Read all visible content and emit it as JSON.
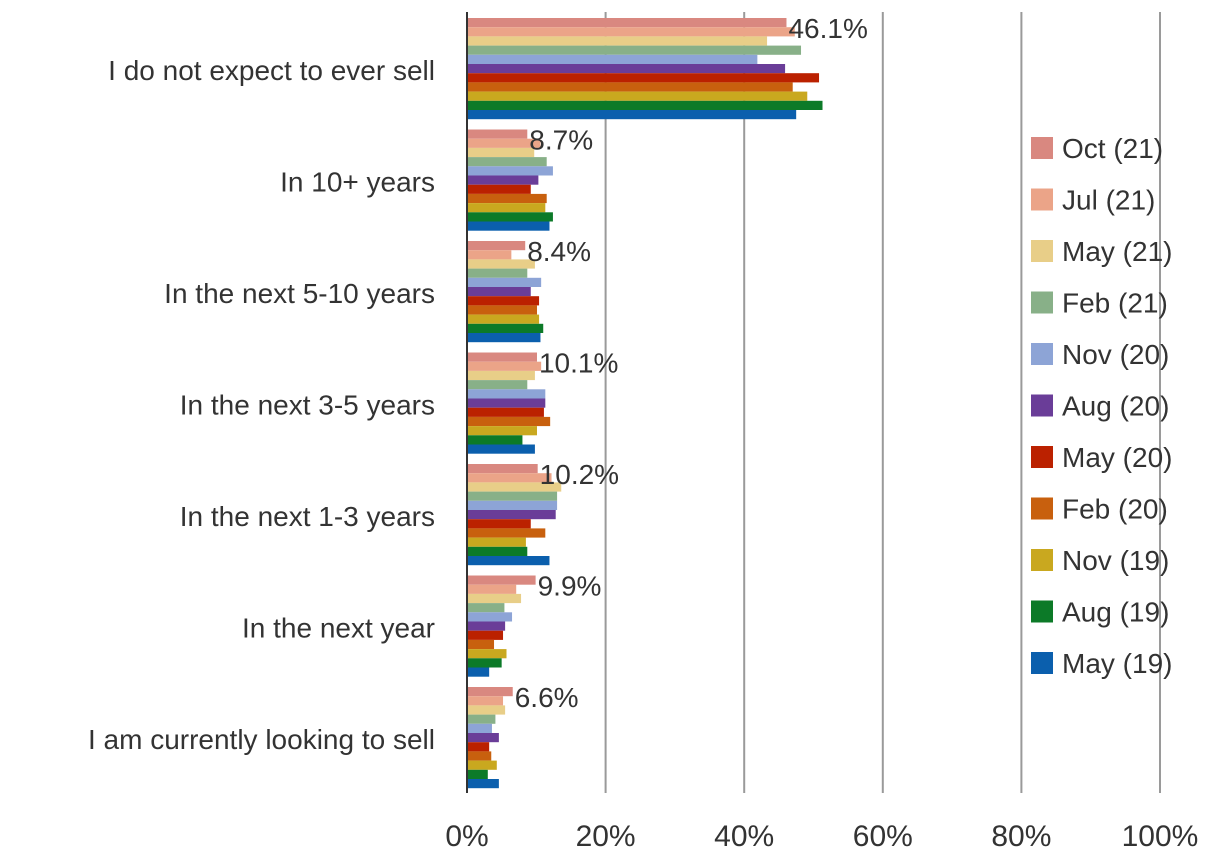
{
  "chart_data": {
    "type": "bar",
    "orientation": "horizontal",
    "categories": [
      "I do not expect to ever sell",
      "In 10+ years",
      "In the next 5-10 years",
      "In the next 3-5 years",
      "In the next 1-3 years",
      "In the next year",
      "I am currently looking to sell"
    ],
    "series": [
      {
        "name": "Oct (21)",
        "color": "#D98880",
        "values": [
          46.1,
          8.7,
          8.4,
          10.1,
          10.2,
          9.9,
          6.6
        ]
      },
      {
        "name": "Jul (21)",
        "color": "#EBA488",
        "values": [
          47.3,
          10.6,
          6.4,
          10.7,
          12.2,
          7.1,
          5.2
        ]
      },
      {
        "name": "May (21)",
        "color": "#E8CE88",
        "values": [
          43.3,
          9.7,
          9.8,
          9.8,
          13.6,
          7.8,
          5.5
        ]
      },
      {
        "name": "Feb (21)",
        "color": "#88B088",
        "values": [
          48.2,
          11.5,
          8.7,
          8.7,
          13.0,
          5.4,
          4.1
        ]
      },
      {
        "name": "Nov (20)",
        "color": "#8DA4D6",
        "values": [
          41.9,
          12.4,
          10.7,
          11.3,
          13.0,
          6.5,
          3.6
        ]
      },
      {
        "name": "Aug (20)",
        "color": "#6A3D98",
        "values": [
          45.9,
          10.3,
          9.2,
          11.3,
          12.8,
          5.5,
          4.6
        ]
      },
      {
        "name": "May (20)",
        "color": "#BB2100",
        "values": [
          50.8,
          9.2,
          10.4,
          11.1,
          9.2,
          5.2,
          3.2
        ]
      },
      {
        "name": "Feb (20)",
        "color": "#C8600E",
        "values": [
          47.0,
          11.5,
          10.1,
          12.0,
          11.3,
          3.9,
          3.5
        ]
      },
      {
        "name": "Nov (19)",
        "color": "#C9A81F",
        "values": [
          49.1,
          11.3,
          10.4,
          10.1,
          8.5,
          5.7,
          4.3
        ]
      },
      {
        "name": "Aug (19)",
        "color": "#0C7A28",
        "values": [
          51.3,
          12.4,
          11.0,
          8.0,
          8.7,
          5.0,
          3.0
        ]
      },
      {
        "name": "May (19)",
        "color": "#0B5FAD",
        "values": [
          47.5,
          11.9,
          10.6,
          9.8,
          11.9,
          3.2,
          4.6
        ]
      }
    ],
    "data_labels": [
      "46.1%",
      "8.7%",
      "8.4%",
      "10.1%",
      "10.2%",
      "9.9%",
      "6.6%"
    ],
    "x_ticks": [
      "0%",
      "20%",
      "40%",
      "60%",
      "80%",
      "100%"
    ],
    "xlim": [
      0,
      100
    ],
    "x_unit": "%",
    "grid": "vertical",
    "legend_position": "right",
    "title": "",
    "xlabel": "",
    "ylabel": ""
  }
}
